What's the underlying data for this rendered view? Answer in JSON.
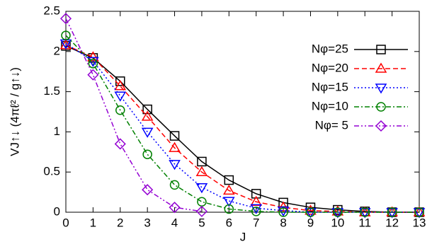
{
  "chart_data": {
    "type": "line",
    "x": [
      0,
      1,
      2,
      3,
      4,
      5,
      6,
      7,
      8,
      9,
      10,
      11,
      12,
      13
    ],
    "xlabel": "J",
    "ylabel": "VJ↑↓ (4πℓ² / g↑↓)",
    "xlim": [
      0,
      13
    ],
    "ylim": [
      0,
      2.5
    ],
    "xticks": [
      0,
      1,
      2,
      3,
      4,
      5,
      6,
      7,
      8,
      9,
      10,
      11,
      12,
      13
    ],
    "yticks": [
      0,
      0.5,
      1,
      1.5,
      2,
      2.5
    ],
    "legend": "upper right",
    "series": [
      {
        "name": "Nφ=25",
        "color": "#000000",
        "dash": "solid",
        "marker": "square",
        "values": [
          2.07,
          1.92,
          1.63,
          1.28,
          0.95,
          0.63,
          0.4,
          0.23,
          0.12,
          0.06,
          0.03,
          0.01,
          0,
          0
        ]
      },
      {
        "name": "Nφ=20",
        "color": "#ff0000",
        "dash": "dashed",
        "marker": "triangle-up",
        "values": [
          2.08,
          1.93,
          1.57,
          1.19,
          0.8,
          0.5,
          0.27,
          0.13,
          0.06,
          0.02,
          0.01,
          0,
          0,
          0
        ]
      },
      {
        "name": "Nφ=15",
        "color": "#0000ff",
        "dash": "dotted",
        "marker": "triangle-down",
        "values": [
          2.1,
          1.88,
          1.45,
          1.0,
          0.6,
          0.31,
          0.14,
          0.05,
          0.02,
          0,
          0,
          0,
          0,
          0
        ]
      },
      {
        "name": "Nφ=10",
        "color": "#008000",
        "dash": "dashdot",
        "marker": "circle",
        "values": [
          2.2,
          1.85,
          1.27,
          0.72,
          0.34,
          0.13,
          0.04,
          0.01,
          0,
          0,
          0,
          0,
          0,
          0
        ]
      },
      {
        "name": "Nφ= 5",
        "color": "#9400d3",
        "dash": "dashdotdot",
        "marker": "diamond",
        "values": [
          2.41,
          1.71,
          0.85,
          0.28,
          0.06,
          0.01,
          null,
          null,
          null,
          null,
          null,
          null,
          null,
          null
        ]
      }
    ]
  }
}
